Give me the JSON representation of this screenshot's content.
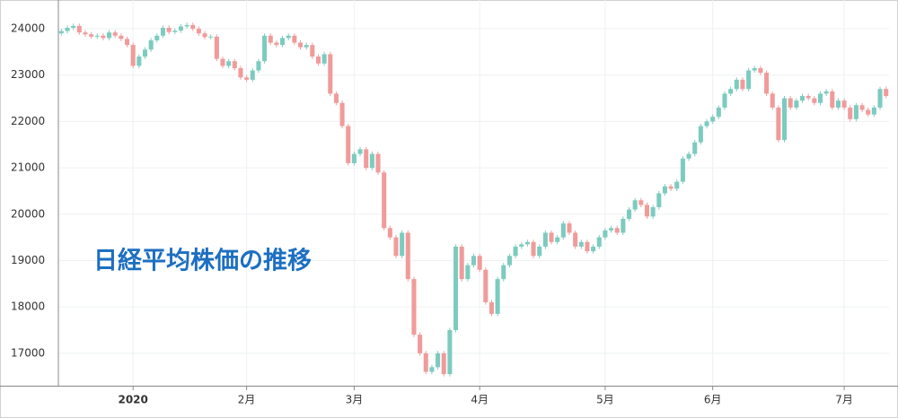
{
  "chart_data": {
    "type": "candlestick",
    "title": "日経平均株価の推移",
    "categories": [
      null,
      null,
      null,
      null,
      null,
      null,
      null,
      null,
      null,
      null,
      null,
      null,
      "2020",
      null,
      null,
      null,
      null,
      null,
      null,
      null,
      null,
      null,
      null,
      null,
      null,
      null,
      null,
      null,
      null,
      null,
      null,
      "2月",
      null,
      null,
      null,
      null,
      null,
      null,
      null,
      null,
      null,
      null,
      null,
      null,
      null,
      null,
      null,
      null,
      null,
      "3月",
      null,
      null,
      null,
      null,
      null,
      null,
      null,
      null,
      null,
      null,
      null,
      null,
      null,
      null,
      null,
      null,
      null,
      null,
      null,
      null,
      "4月",
      null,
      null,
      null,
      null,
      null,
      null,
      null,
      null,
      null,
      null,
      null,
      null,
      null,
      null,
      null,
      null,
      null,
      null,
      null,
      null,
      "5月",
      null,
      null,
      null,
      null,
      null,
      null,
      null,
      null,
      null,
      null,
      null,
      null,
      null,
      null,
      null,
      null,
      null,
      "6月",
      null,
      null,
      null,
      null,
      null,
      null,
      null,
      null,
      null,
      null,
      null,
      null,
      null,
      null,
      null,
      null,
      null,
      null,
      null,
      null,
      null,
      "7月",
      null,
      null,
      null,
      null,
      null,
      null,
      null
    ],
    "open": [
      23900,
      23950,
      24020,
      24060,
      23920,
      23880,
      23830,
      23850,
      23800,
      23920,
      23850,
      23780,
      23650,
      23200,
      23400,
      23550,
      23750,
      23850,
      24020,
      23930,
      23960,
      24050,
      24080,
      24000,
      23900,
      23820,
      23830,
      23350,
      23200,
      23300,
      23150,
      22950,
      22900,
      23100,
      23300,
      23850,
      23700,
      23650,
      23800,
      23850,
      23700,
      23600,
      23650,
      23400,
      23250,
      23450,
      22600,
      22400,
      21900,
      21100,
      21300,
      21400,
      21000,
      21300,
      20900,
      19700,
      19500,
      19100,
      19600,
      18600,
      17400,
      17000,
      16600,
      16700,
      17000,
      16550,
      17500,
      19300,
      18600,
      18900,
      19100,
      18800,
      18100,
      17850,
      18600,
      18900,
      19100,
      19300,
      19350,
      19400,
      19100,
      19300,
      19600,
      19400,
      19500,
      19800,
      19600,
      19300,
      19400,
      19200,
      19300,
      19500,
      19650,
      19700,
      19600,
      19900,
      20100,
      20300,
      20200,
      19950,
      20150,
      20450,
      20600,
      20550,
      20700,
      21200,
      21300,
      21550,
      21900,
      22000,
      22100,
      22300,
      22600,
      22700,
      22900,
      22700,
      23100,
      23150,
      23050,
      22600,
      22300,
      21600,
      22500,
      22300,
      22450,
      22550,
      22500,
      22400,
      22600,
      22650,
      22300,
      22450,
      22300,
      22050,
      22350,
      22250,
      22150,
      22300,
      22700
    ],
    "high": [
      24000,
      24070,
      24110,
      24110,
      23970,
      23930,
      23900,
      23900,
      23970,
      23970,
      23900,
      23830,
      23700,
      23450,
      23600,
      23800,
      23900,
      24070,
      24070,
      24010,
      24100,
      24130,
      24130,
      24050,
      23950,
      23880,
      23880,
      23400,
      23350,
      23350,
      23200,
      23000,
      23150,
      23350,
      23900,
      23900,
      23750,
      23850,
      23900,
      23900,
      23750,
      23700,
      23700,
      23450,
      23500,
      23500,
      22650,
      22450,
      21950,
      21350,
      21450,
      21450,
      21350,
      21350,
      20950,
      19750,
      19550,
      19650,
      19650,
      18650,
      17450,
      17050,
      16750,
      17050,
      17050,
      17550,
      19350,
      19350,
      18950,
      19150,
      19150,
      18850,
      18150,
      18650,
      18950,
      19150,
      19350,
      19400,
      19450,
      19450,
      19350,
      19650,
      19650,
      19550,
      19850,
      19850,
      19650,
      19450,
      19450,
      19350,
      19550,
      19700,
      19750,
      19750,
      19950,
      20150,
      20350,
      20350,
      20250,
      20200,
      20500,
      20650,
      20650,
      20750,
      21250,
      21350,
      21600,
      21950,
      22050,
      22150,
      22350,
      22650,
      22750,
      22950,
      22950,
      23150,
      23200,
      23200,
      23100,
      22650,
      22350,
      22550,
      22550,
      22500,
      22600,
      22600,
      22550,
      22650,
      22700,
      22700,
      22500,
      22500,
      22350,
      22400,
      22400,
      22300,
      22350,
      22750,
      22750
    ],
    "low": [
      23850,
      23900,
      23970,
      23870,
      23830,
      23780,
      23780,
      23750,
      23750,
      23800,
      23730,
      23600,
      23150,
      23150,
      23350,
      23500,
      23700,
      23800,
      23880,
      23880,
      23910,
      24000,
      23950,
      23850,
      23770,
      23770,
      23300,
      23150,
      23150,
      23100,
      22900,
      22850,
      22850,
      23050,
      23250,
      23650,
      23600,
      23600,
      23750,
      23650,
      23550,
      23550,
      23350,
      23200,
      23200,
      22550,
      22350,
      21850,
      21050,
      21050,
      21250,
      20950,
      20950,
      20850,
      19650,
      19450,
      19050,
      19050,
      18550,
      17350,
      16950,
      16550,
      16550,
      16650,
      16500,
      16500,
      17450,
      18550,
      18550,
      18850,
      18750,
      18050,
      17800,
      17800,
      18550,
      18850,
      19050,
      19250,
      19300,
      19050,
      19050,
      19250,
      19350,
      19350,
      19450,
      19550,
      19250,
      19250,
      19150,
      19150,
      19250,
      19450,
      19600,
      19550,
      19550,
      19850,
      20050,
      20150,
      19900,
      19900,
      20100,
      20400,
      20500,
      20500,
      20650,
      21150,
      21250,
      21500,
      21850,
      21950,
      22050,
      22250,
      22550,
      22650,
      22650,
      22650,
      23050,
      23000,
      22550,
      22250,
      21550,
      21550,
      22250,
      22250,
      22400,
      22450,
      22350,
      22350,
      22550,
      22250,
      22250,
      22250,
      22000,
      22000,
      22200,
      22100,
      22100,
      22250,
      22500
    ],
    "close": [
      23950,
      24020,
      24060,
      23920,
      23880,
      23830,
      23850,
      23800,
      23920,
      23850,
      23780,
      23650,
      23200,
      23400,
      23550,
      23750,
      23850,
      24020,
      23930,
      23960,
      24050,
      24080,
      24000,
      23900,
      23820,
      23830,
      23350,
      23200,
      23300,
      23150,
      22950,
      22900,
      23100,
      23300,
      23850,
      23700,
      23650,
      23800,
      23850,
      23700,
      23600,
      23650,
      23400,
      23250,
      23450,
      22600,
      22400,
      21900,
      21100,
      21300,
      21400,
      21000,
      21300,
      20900,
      19700,
      19500,
      19100,
      19600,
      18600,
      17400,
      17000,
      16600,
      16700,
      17000,
      16550,
      17500,
      19300,
      18600,
      18900,
      19100,
      18800,
      18100,
      17850,
      18600,
      18900,
      19100,
      19300,
      19350,
      19400,
      19100,
      19300,
      19600,
      19400,
      19500,
      19800,
      19600,
      19300,
      19400,
      19200,
      19300,
      19500,
      19650,
      19700,
      19600,
      19900,
      20100,
      20300,
      20200,
      19950,
      20150,
      20450,
      20600,
      20550,
      20700,
      21200,
      21300,
      21550,
      21900,
      22000,
      22100,
      22300,
      22600,
      22700,
      22900,
      22700,
      23100,
      23150,
      23050,
      22600,
      22300,
      21600,
      22500,
      22300,
      22450,
      22550,
      22500,
      22400,
      22600,
      22650,
      22300,
      22450,
      22300,
      22050,
      22350,
      22250,
      22150,
      22300,
      22700,
      22550
    ],
    "up_color": "#7dcbbf",
    "down_color": "#f09b9b",
    "ylim": [
      16300,
      24620
    ],
    "yticks": [
      17000,
      18000,
      19000,
      20000,
      21000,
      22000,
      23000,
      24000
    ],
    "grid": true
  }
}
